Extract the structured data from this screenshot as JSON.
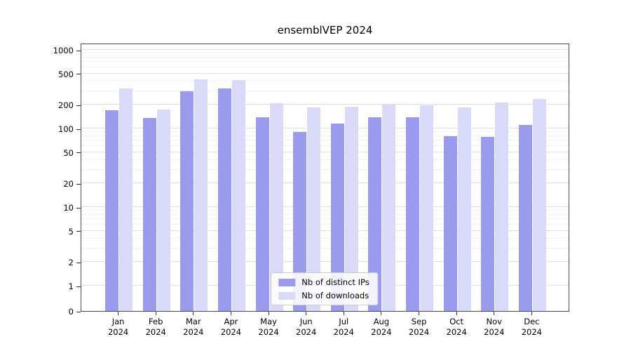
{
  "chart_data": {
    "type": "bar",
    "title": "ensemblVEP 2024",
    "categories": [
      "Jan 2024",
      "Feb 2024",
      "Mar 2024",
      "Apr 2024",
      "May 2024",
      "Jun 2024",
      "Jul 2024",
      "Aug 2024",
      "Sep 2024",
      "Oct 2024",
      "Nov 2024",
      "Dec 2024"
    ],
    "series": [
      {
        "name": "Nb of distinct IPs",
        "color": "#9b9bee",
        "values": [
          170,
          135,
          300,
          320,
          140,
          90,
          115,
          140,
          138,
          80,
          78,
          110
        ]
      },
      {
        "name": "Nb of downloads",
        "color": "#d9d9f8",
        "values": [
          320,
          175,
          420,
          415,
          210,
          185,
          190,
          205,
          198,
          185,
          215,
          235
        ]
      }
    ],
    "yticks": [
      0,
      1,
      2,
      5,
      10,
      20,
      50,
      100,
      200,
      500,
      1000
    ],
    "yscale": "symlog",
    "ylim": [
      0,
      1230
    ],
    "grid": "horizontal",
    "legend_position": "lower center"
  }
}
